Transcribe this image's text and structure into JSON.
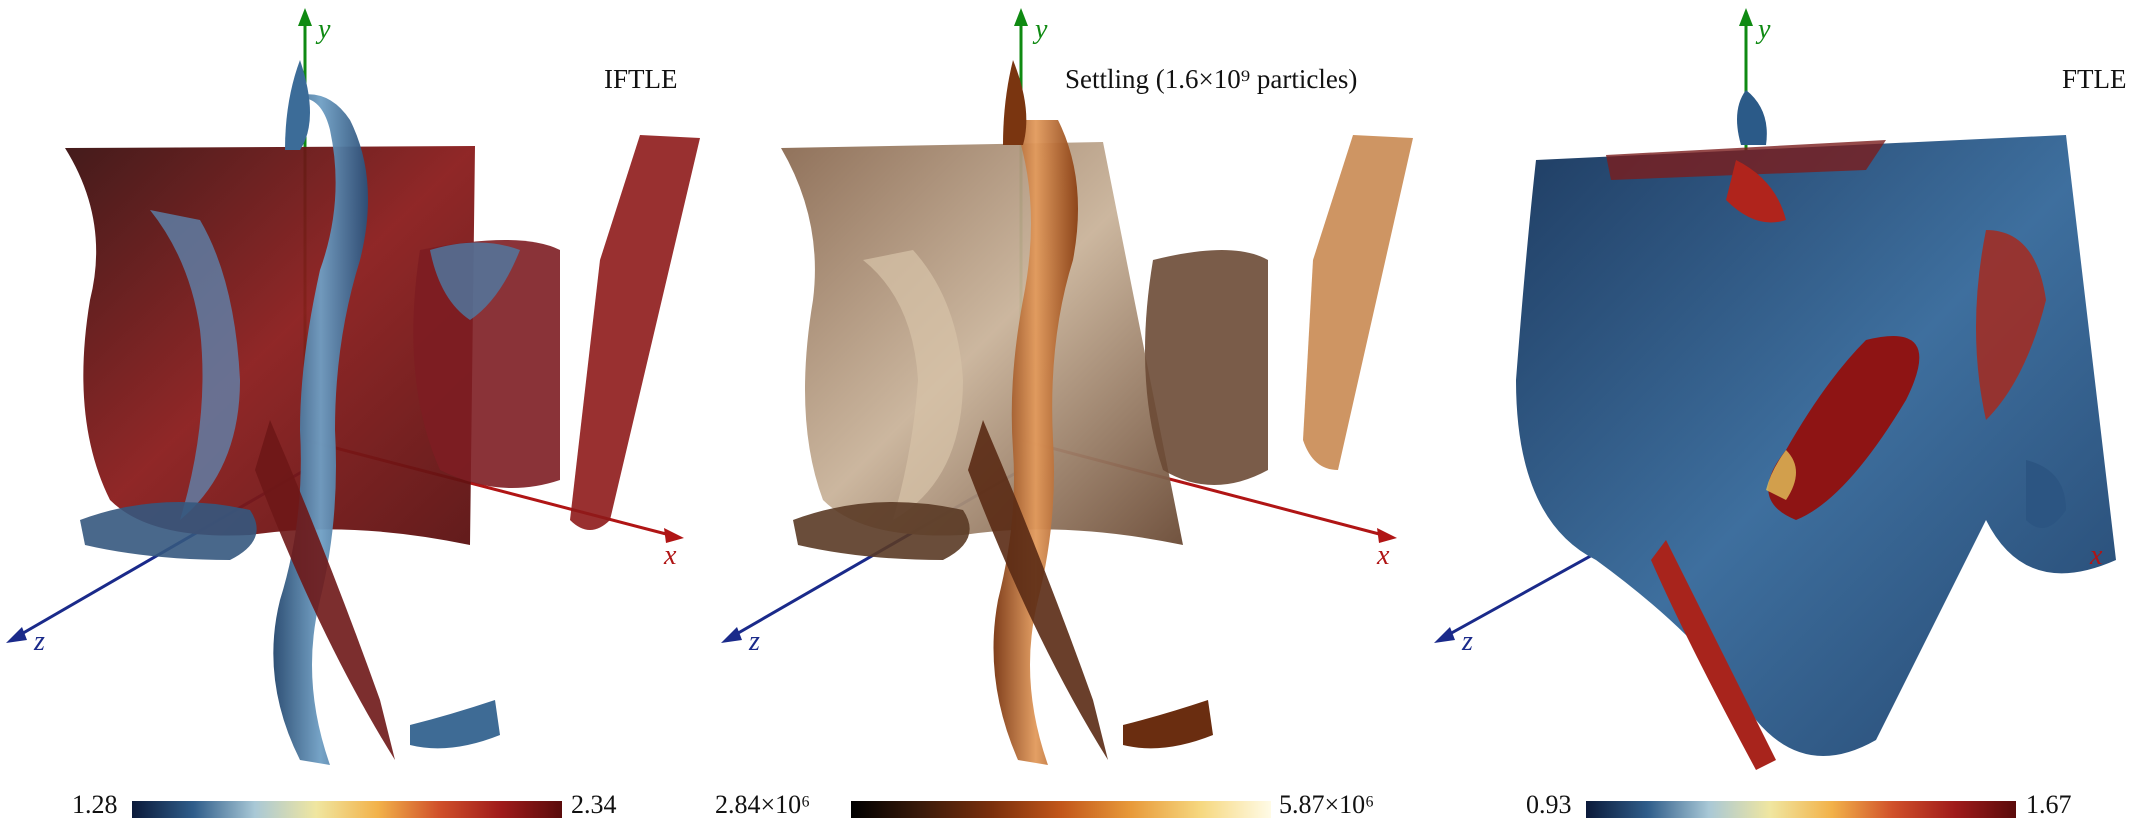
{
  "panels": [
    {
      "title": "IFTLE",
      "colormap": "blue-yellow-red",
      "colorbar": {
        "min_label": "1.28",
        "max_label": "2.34"
      },
      "axes": {
        "x": "x",
        "y": "y",
        "z": "z"
      }
    },
    {
      "title": "Settling (1.6×10⁹ particles)",
      "colormap": "black-orange-yellow",
      "colorbar": {
        "min_label": "2.84×10⁶",
        "max_label": "5.87×10⁶"
      },
      "axes": {
        "x": "x",
        "y": "y",
        "z": "z"
      }
    },
    {
      "title": "FTLE",
      "colormap": "blue-yellow-red",
      "colorbar": {
        "min_label": "0.93",
        "max_label": "1.67"
      },
      "axes": {
        "x": "x",
        "y": "y",
        "z": "z"
      }
    }
  ],
  "colors": {
    "axis_x": "#b01515",
    "axis_y": "#0f8a12",
    "axis_z": "#1a2a8a"
  }
}
